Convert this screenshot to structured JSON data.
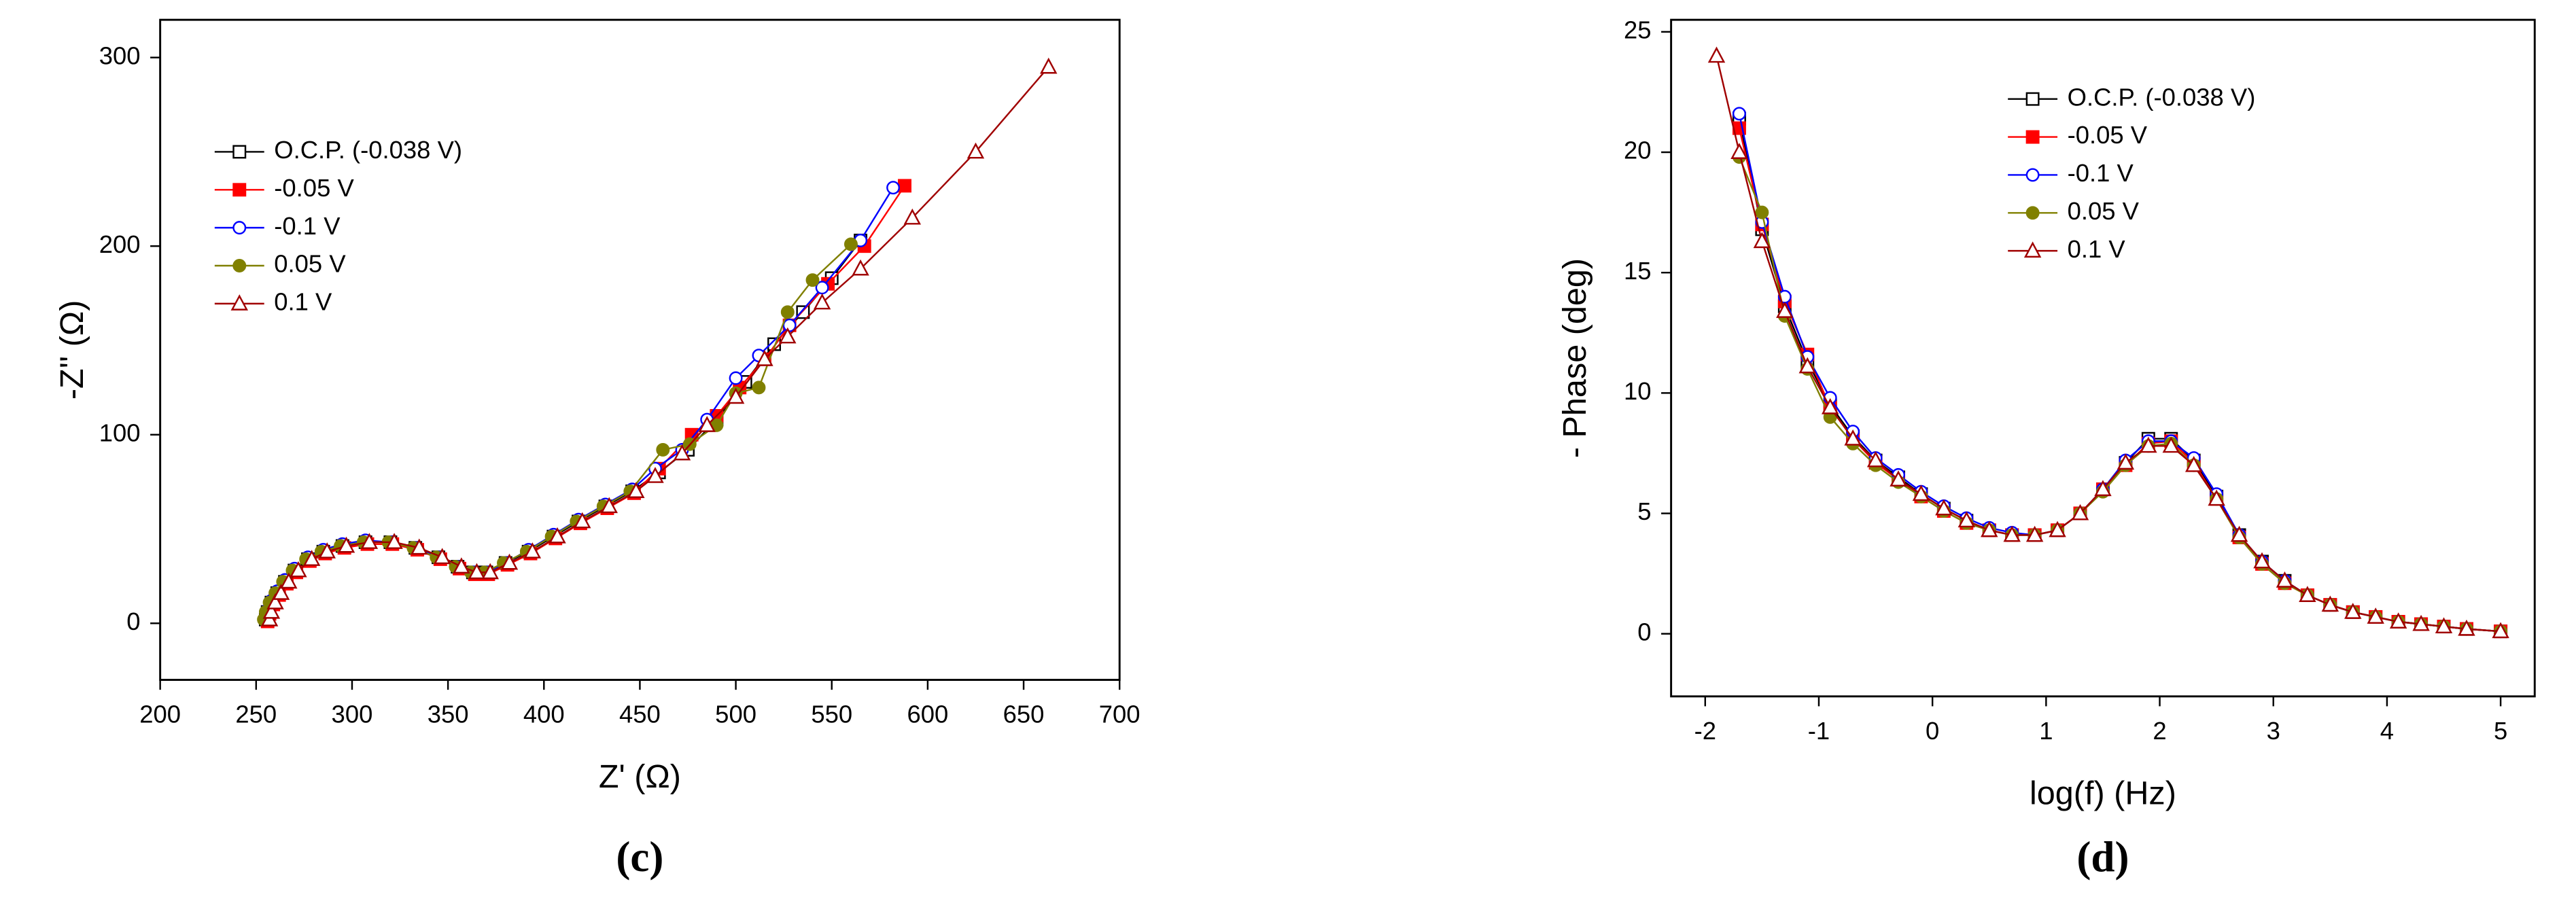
{
  "chart_data": [
    {
      "type": "line",
      "caption": "(c)",
      "x_label": "Z' (Ω)",
      "y_label": "-Z'' (Ω)",
      "xlim": [
        200,
        700
      ],
      "ylim": [
        -30,
        320
      ],
      "xticks": [
        200,
        250,
        300,
        350,
        400,
        450,
        500,
        550,
        600,
        650,
        700
      ],
      "yticks": [
        0,
        100,
        200,
        300
      ],
      "legend": "upper left",
      "series": [
        {
          "name": "O.C.P. (-0.038 V)",
          "color": "#000000",
          "marker": "square",
          "filled": false,
          "x": [
            255,
            256,
            258,
            261,
            265,
            270,
            277,
            285,
            295,
            307,
            320,
            333,
            345,
            355,
            363,
            370,
            380,
            392,
            405,
            418,
            432,
            446,
            460,
            475,
            490,
            505,
            520,
            535,
            550,
            565
          ],
          "values": [
            2,
            6,
            11,
            16,
            22,
            28,
            34,
            38,
            41,
            43,
            43,
            40,
            35,
            30,
            27,
            27,
            32,
            38,
            46,
            54,
            62,
            70,
            80,
            92,
            108,
            128,
            148,
            165,
            183,
            203
          ]
        },
        {
          "name": "-0.05 V",
          "color": "#ff0000",
          "marker": "square",
          "filled": true,
          "x": [
            256,
            257,
            259,
            262,
            266,
            271,
            278,
            286,
            296,
            308,
            321,
            334,
            346,
            356,
            364,
            371,
            381,
            393,
            406,
            419,
            433,
            447,
            460,
            477,
            490,
            502,
            515,
            528,
            548,
            567,
            588
          ],
          "values": [
            1,
            5,
            10,
            15,
            21,
            27,
            33,
            37,
            40,
            42,
            42,
            39,
            34,
            29,
            26,
            26,
            31,
            37,
            45,
            53,
            61,
            69,
            82,
            100,
            110,
            125,
            140,
            158,
            180,
            200,
            232
          ]
        },
        {
          "name": "-0.1 V",
          "color": "#0000ff",
          "marker": "circle",
          "filled": false,
          "x": [
            255,
            256,
            258,
            261,
            265,
            270,
            277,
            285,
            295,
            307,
            320,
            333,
            345,
            355,
            363,
            370,
            380,
            392,
            405,
            418,
            432,
            446,
            458,
            472,
            485,
            500,
            512,
            528,
            545,
            565,
            582
          ],
          "values": [
            3,
            7,
            12,
            17,
            23,
            29,
            35,
            39,
            42,
            44,
            43,
            40,
            35,
            30,
            27,
            27,
            32,
            39,
            47,
            55,
            63,
            71,
            82,
            92,
            108,
            130,
            142,
            158,
            178,
            203,
            231
          ]
        },
        {
          "name": "0.05 V",
          "color": "#808000",
          "marker": "circle",
          "filled": true,
          "x": [
            254,
            255,
            257,
            260,
            264,
            269,
            276,
            284,
            294,
            306,
            319,
            332,
            344,
            354,
            362,
            369,
            379,
            391,
            404,
            417,
            431,
            445,
            462,
            476,
            490,
            500,
            512,
            527,
            540,
            560
          ],
          "values": [
            2,
            6,
            11,
            16,
            22,
            28,
            34,
            38,
            41,
            43,
            43,
            40,
            35,
            30,
            27,
            27,
            32,
            38,
            46,
            54,
            62,
            70,
            92,
            95,
            105,
            122,
            125,
            165,
            182,
            201
          ]
        },
        {
          "name": "0.1 V",
          "color": "#a00000",
          "marker": "triangle",
          "filled": false,
          "x": [
            257,
            258,
            260,
            263,
            267,
            272,
            279,
            287,
            297,
            309,
            322,
            335,
            347,
            357,
            365,
            372,
            382,
            394,
            407,
            420,
            434,
            448,
            458,
            472,
            485,
            500,
            515,
            527,
            545,
            565,
            592,
            625,
            663
          ],
          "values": [
            2,
            6,
            11,
            16,
            22,
            28,
            34,
            38,
            41,
            43,
            43,
            40,
            35,
            30,
            27,
            27,
            32,
            38,
            46,
            54,
            62,
            70,
            78,
            90,
            105,
            120,
            140,
            152,
            170,
            188,
            215,
            250,
            295
          ]
        }
      ]
    },
    {
      "type": "line",
      "caption": "(d)",
      "x_label": "log(f) (Hz)",
      "y_label": "- Phase (deg)",
      "xlim": [
        -2.3,
        5.3
      ],
      "ylim": [
        -2.6,
        25.5
      ],
      "xticks": [
        -2,
        -1,
        0,
        1,
        2,
        3,
        4,
        5
      ],
      "yticks": [
        0,
        5,
        10,
        15,
        20,
        25
      ],
      "legend": "upper center",
      "x": [
        -1.9,
        -1.7,
        -1.5,
        -1.3,
        -1.1,
        -0.9,
        -0.7,
        -0.5,
        -0.3,
        -0.1,
        0.1,
        0.3,
        0.5,
        0.7,
        0.9,
        1.1,
        1.3,
        1.5,
        1.7,
        1.9,
        2.1,
        2.3,
        2.5,
        2.7,
        2.9,
        3.1,
        3.3,
        3.5,
        3.7,
        3.9,
        4.1,
        4.3,
        4.5,
        4.7,
        5.0
      ],
      "series": [
        {
          "name": "O.C.P. (-0.038 V)",
          "color": "#000000",
          "marker": "square",
          "filled": false,
          "values": [
            null,
            21.4,
            16.8,
            13.6,
            11.3,
            9.5,
            8.2,
            7.2,
            6.5,
            5.8,
            5.2,
            4.7,
            4.3,
            4.1,
            4.1,
            4.3,
            5.0,
            6.0,
            7.1,
            8.1,
            8.1,
            7.2,
            5.7,
            4.1,
            3.0,
            2.2,
            1.6,
            1.2,
            0.9,
            0.7,
            0.5,
            0.4,
            0.3,
            0.2,
            0.1
          ]
        },
        {
          "name": "-0.05 V",
          "color": "#ff0000",
          "marker": "square",
          "filled": true,
          "values": [
            null,
            21.0,
            17.0,
            13.8,
            11.6,
            9.4,
            8.1,
            7.1,
            6.4,
            5.7,
            5.1,
            4.6,
            4.3,
            4.1,
            4.1,
            4.3,
            5.0,
            6.0,
            7.0,
            7.9,
            8.0,
            7.1,
            5.6,
            4.0,
            2.9,
            2.1,
            1.6,
            1.2,
            0.9,
            0.7,
            0.5,
            0.4,
            0.3,
            0.2,
            0.1
          ]
        },
        {
          "name": "-0.1 V",
          "color": "#0000ff",
          "marker": "circle",
          "filled": false,
          "values": [
            null,
            21.6,
            17.1,
            14.0,
            11.5,
            9.8,
            8.4,
            7.3,
            6.6,
            5.9,
            5.3,
            4.8,
            4.4,
            4.2,
            4.1,
            4.3,
            5.0,
            6.0,
            7.2,
            8.0,
            8.0,
            7.3,
            5.8,
            4.1,
            3.0,
            2.2,
            1.6,
            1.2,
            0.9,
            0.7,
            0.5,
            0.4,
            0.3,
            0.2,
            0.1
          ]
        },
        {
          "name": "0.05 V",
          "color": "#808000",
          "marker": "circle",
          "filled": true,
          "values": [
            null,
            19.8,
            17.5,
            13.2,
            11.0,
            9.0,
            7.9,
            7.0,
            6.3,
            5.7,
            5.1,
            4.6,
            4.3,
            4.1,
            4.1,
            4.3,
            5.0,
            5.9,
            7.0,
            7.8,
            7.9,
            7.0,
            5.6,
            4.0,
            2.9,
            2.1,
            1.6,
            1.2,
            0.9,
            0.7,
            0.5,
            0.4,
            0.3,
            0.2,
            0.1
          ]
        },
        {
          "name": "0.1 V",
          "color": "#a00000",
          "marker": "triangle",
          "filled": false,
          "values": [
            24.0,
            20.0,
            16.3,
            13.4,
            11.1,
            9.4,
            8.1,
            7.2,
            6.4,
            5.8,
            5.2,
            4.7,
            4.3,
            4.1,
            4.1,
            4.3,
            5.0,
            6.0,
            7.1,
            7.8,
            7.8,
            7.0,
            5.6,
            4.1,
            3.0,
            2.2,
            1.6,
            1.2,
            0.9,
            0.7,
            0.5,
            0.4,
            0.3,
            0.2,
            0.1
          ]
        }
      ]
    }
  ]
}
